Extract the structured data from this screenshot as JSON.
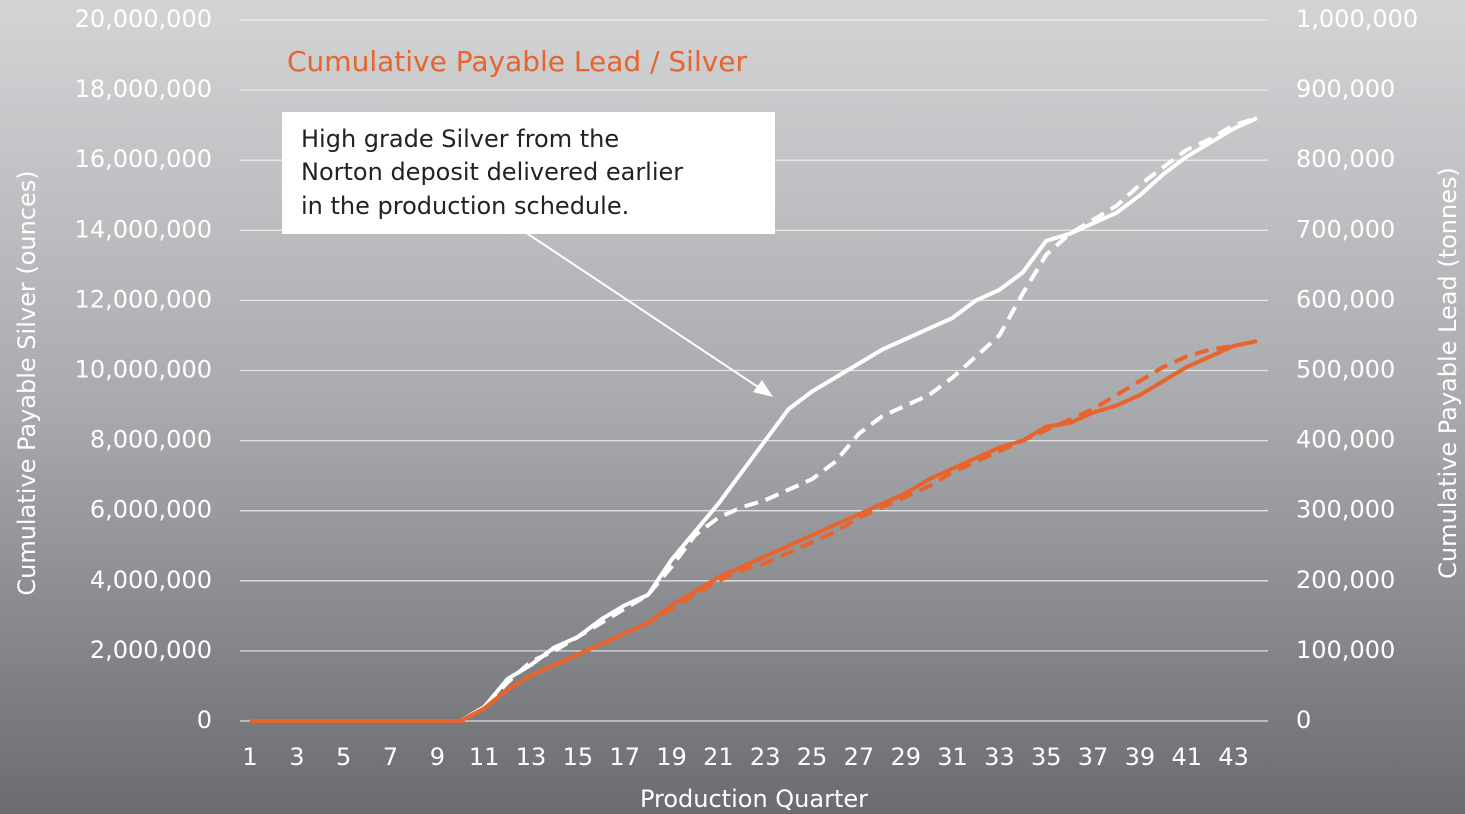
{
  "chart_data": {
    "type": "line",
    "title": "Cumulative Payable Lead / Silver",
    "annotation": [
      "High grade Silver from the",
      "Norton deposit delivered earlier",
      "in the production schedule."
    ],
    "x_label": "Production Quarter",
    "y_label": "Cumulative Payable Silver (ounces)",
    "y2_label": "Cumulative Payable Lead (tonnes)",
    "categories": [
      1,
      null,
      3,
      null,
      5,
      null,
      7,
      null,
      9,
      null,
      11,
      null,
      13,
      null,
      15,
      null,
      17,
      null,
      19,
      null,
      21,
      null,
      23,
      null,
      25,
      null,
      27,
      null,
      29,
      null,
      31,
      null,
      33,
      null,
      35,
      null,
      37,
      null,
      39,
      null,
      41,
      null,
      43,
      null
    ],
    "ylim": [
      0,
      20000000
    ],
    "yticks": [
      0,
      {
        "value": 2000000,
        "label": "2,000,000"
      },
      {
        "value": 4000000,
        "label": "4,000,000"
      },
      {
        "value": 6000000,
        "label": "6,000,000"
      },
      {
        "value": 8000000,
        "label": "8,000,000"
      },
      {
        "value": 10000000,
        "label": "10,000,000"
      },
      {
        "value": 12000000,
        "label": "12,000,000"
      },
      {
        "value": 14000000,
        "label": "14,000,000"
      },
      {
        "value": 16000000,
        "label": "16,000,000"
      },
      {
        "value": 18000000,
        "label": "18,000,000"
      },
      {
        "value": 20000000,
        "label": "20,000,000"
      }
    ],
    "y2lim": [
      0,
      1000000
    ],
    "y2ticks": [
      0,
      {
        "value": 100000,
        "label": "100,000"
      },
      {
        "value": 200000,
        "label": "200,000"
      },
      {
        "value": 300000,
        "label": "300,000"
      },
      {
        "value": 400000,
        "label": "400,000"
      },
      {
        "value": 500000,
        "label": "500,000"
      },
      {
        "value": 600000,
        "label": "600,000"
      },
      {
        "value": 700000,
        "label": "700,000"
      },
      {
        "value": 800000,
        "label": "800,000"
      },
      {
        "value": 900000,
        "label": "900,000"
      },
      {
        "value": 1000000,
        "label": "1,000,000"
      }
    ],
    "grid": true,
    "series": [
      {
        "color": "#ffffff",
        "dashed": false,
        "axis": "y",
        "values": [
          0,
          0,
          0,
          0,
          0,
          0,
          0,
          0,
          0,
          0,
          400000,
          1200000,
          1600000,
          2100000,
          2400000,
          2900000,
          3300000,
          3600000,
          4600000,
          5400000,
          6200000,
          7100000,
          8000000,
          8900000,
          9400000,
          9800000,
          10200000,
          10600000,
          10900000,
          11200000,
          11500000,
          12000000,
          12300000,
          12800000,
          13700000,
          13900000,
          14200000,
          14500000,
          15000000,
          15600000,
          16100000,
          16500000,
          16900000,
          17200000
        ]
      },
      {
        "color": "#ffffff",
        "dashed": true,
        "axis": "y",
        "values": [
          0,
          0,
          0,
          0,
          0,
          0,
          0,
          0,
          0,
          0,
          400000,
          1100000,
          1700000,
          2000000,
          2400000,
          2800000,
          3200000,
          3600000,
          4400000,
          5300000,
          5800000,
          6100000,
          6300000,
          6600000,
          6900000,
          7400000,
          8200000,
          8700000,
          9000000,
          9300000,
          9800000,
          10400000,
          11000000,
          12200000,
          13300000,
          13900000,
          14300000,
          14700000,
          15300000,
          15800000,
          16300000,
          16600000,
          17000000,
          17200000
        ]
      },
      {
        "color": "#e8642c",
        "dashed": false,
        "axis": "y2",
        "values": [
          0,
          0,
          0,
          0,
          0,
          0,
          0,
          0,
          0,
          0,
          18000,
          45000,
          65000,
          80000,
          95000,
          110000,
          125000,
          140000,
          165000,
          185000,
          205000,
          220000,
          235000,
          250000,
          265000,
          280000,
          295000,
          310000,
          325000,
          345000,
          360000,
          375000,
          390000,
          400000,
          420000,
          425000,
          440000,
          450000,
          465000,
          485000,
          505000,
          520000,
          535000,
          542000
        ]
      },
      {
        "color": "#e8642c",
        "dashed": true,
        "axis": "y2",
        "values": [
          0,
          0,
          0,
          0,
          0,
          0,
          0,
          0,
          0,
          0,
          18000,
          45000,
          65000,
          80000,
          95000,
          110000,
          125000,
          140000,
          160000,
          180000,
          200000,
          215000,
          225000,
          240000,
          255000,
          270000,
          290000,
          305000,
          320000,
          335000,
          355000,
          370000,
          385000,
          400000,
          415000,
          430000,
          445000,
          465000,
          485000,
          505000,
          520000,
          530000,
          535000,
          542000
        ]
      }
    ]
  }
}
